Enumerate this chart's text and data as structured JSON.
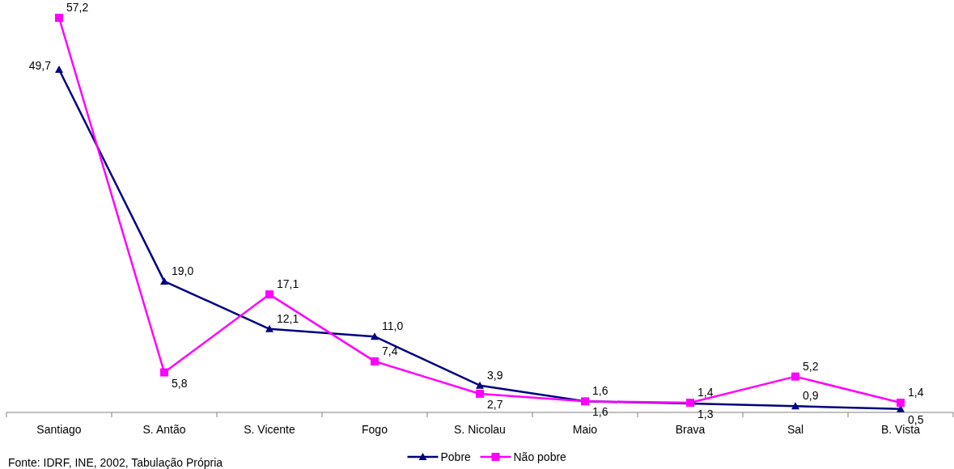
{
  "chart_data": {
    "type": "line",
    "categories": [
      "Santiago",
      "S. Antão",
      "S. Vicente",
      "Fogo",
      "S. Nicolau",
      "Maio",
      "Brava",
      "Sal",
      "B. Vista"
    ],
    "series": [
      {
        "name": "Pobre",
        "color": "#000080",
        "marker": "triangle",
        "values": [
          49.7,
          19.0,
          12.1,
          11.0,
          3.9,
          1.6,
          1.3,
          0.9,
          0.5
        ],
        "value_labels": [
          "49,7",
          "19,0",
          "12,1",
          "11,0",
          "3,9",
          "1,6",
          "1,3",
          "0,9",
          "0,5"
        ]
      },
      {
        "name": "Não pobre",
        "color": "#ff00ff",
        "marker": "square",
        "values": [
          57.2,
          5.8,
          17.1,
          7.4,
          2.7,
          1.6,
          1.4,
          5.2,
          1.4
        ],
        "value_labels": [
          "57,2",
          "5,8",
          "17,1",
          "7,4",
          "2,7",
          "1,6",
          "1,4",
          "5,2",
          "1,4"
        ]
      }
    ],
    "legend": "bottom",
    "grid": false,
    "annotations": [
      "Fonte: IDRF, INE, 2002, Tabulação Própria"
    ]
  }
}
